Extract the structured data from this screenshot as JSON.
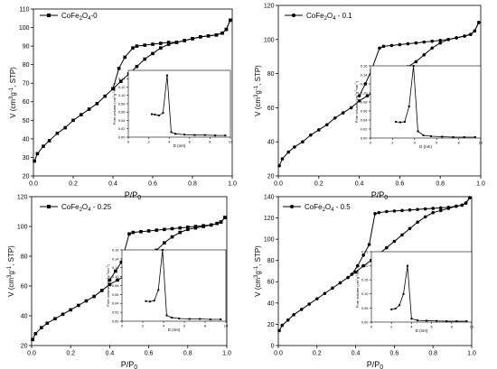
{
  "chart_data": [
    {
      "type": "line",
      "legend": "CoFe2O4-0",
      "legend_formula": {
        "base": "CoFe",
        "s1": "2",
        "mid": "O",
        "s2": "4",
        "tail": "-0"
      },
      "legend_position": "top-left",
      "marker": "square",
      "xlabel": "P/P0",
      "ylabel": "V (cm3g-1, STP)",
      "xlim": [
        0,
        1.0
      ],
      "ylim": [
        20,
        110
      ],
      "xticks": [
        "0.0",
        "0.2",
        "0.4",
        "0.6",
        "0.8",
        "1.0"
      ],
      "yticks": [
        "20",
        "30",
        "40",
        "50",
        "60",
        "70",
        "80",
        "90",
        "100",
        "110"
      ],
      "grid": false,
      "adsorption": {
        "x": [
          0.005,
          0.02,
          0.05,
          0.08,
          0.12,
          0.16,
          0.2,
          0.24,
          0.28,
          0.32,
          0.36,
          0.4,
          0.44,
          0.48,
          0.52,
          0.56,
          0.6,
          0.64,
          0.68,
          0.72,
          0.76,
          0.8,
          0.84,
          0.88,
          0.92,
          0.95,
          0.97,
          0.99
        ],
        "y": [
          28,
          32,
          36,
          39,
          43,
          46,
          50,
          53,
          56,
          59,
          63,
          67,
          71,
          75,
          79,
          83,
          86,
          89,
          91,
          92,
          93,
          94,
          95,
          95.5,
          96,
          97,
          99,
          104
        ]
      },
      "desorption": {
        "x": [
          0.99,
          0.97,
          0.95,
          0.92,
          0.88,
          0.84,
          0.8,
          0.76,
          0.72,
          0.68,
          0.64,
          0.6,
          0.56,
          0.52,
          0.5,
          0.46,
          0.43,
          0.4
        ],
        "y": [
          104,
          99,
          97,
          96,
          95.5,
          95,
          94,
          93,
          92,
          92,
          91.5,
          91,
          90.5,
          90,
          89,
          84,
          78,
          67
        ]
      },
      "inset": {
        "xlabel": "D (nm)",
        "ylabel": "Pore volume (cm3g-1nm-1)",
        "xlim": [
          0,
          10
        ],
        "ylim": [
          0,
          0.16
        ],
        "xticks": [
          "0",
          "2",
          "4",
          "6",
          "8",
          "10"
        ],
        "yticks": [
          "0.00",
          "0.02",
          "0.04",
          "0.06",
          "0.08",
          "0.10",
          "0.12",
          "0.14"
        ],
        "x": [
          2.3,
          2.6,
          3.0,
          3.4,
          3.8,
          4.2,
          4.6,
          5.5,
          6.5,
          7.5,
          8.5,
          9.5
        ],
        "y": [
          0.055,
          0.054,
          0.052,
          0.058,
          0.148,
          0.012,
          0.008,
          0.006,
          0.005,
          0.005,
          0.004,
          0.004
        ]
      }
    },
    {
      "type": "line",
      "legend": "CoFe2O4 - 0.1",
      "legend_formula": {
        "base": "CoFe",
        "s1": "2",
        "mid": "O",
        "s2": "4",
        "tail": " - 0.1"
      },
      "legend_position": "top-left",
      "marker": "circle",
      "xlabel": "P/P0",
      "ylabel": "V (cm3g-1, STP)",
      "xlim": [
        0,
        1.0
      ],
      "ylim": [
        20,
        120
      ],
      "xticks": [
        "0.0",
        "0.2",
        "0.4",
        "0.6",
        "0.8",
        "1.0"
      ],
      "yticks": [
        "20",
        "40",
        "60",
        "80",
        "100",
        "120"
      ],
      "grid": false,
      "adsorption": {
        "x": [
          0.005,
          0.02,
          0.05,
          0.08,
          0.12,
          0.16,
          0.2,
          0.24,
          0.28,
          0.32,
          0.36,
          0.4,
          0.44,
          0.48,
          0.52,
          0.56,
          0.6,
          0.64,
          0.68,
          0.72,
          0.76,
          0.8,
          0.84,
          0.88,
          0.92,
          0.95,
          0.97,
          0.99
        ],
        "y": [
          26,
          30,
          34,
          37,
          40,
          44,
          47,
          50,
          54,
          57,
          60,
          64,
          67,
          70,
          73,
          76,
          80,
          84,
          87,
          91,
          95,
          98,
          100,
          101,
          102,
          103,
          105,
          110
        ]
      },
      "desorption": {
        "x": [
          0.99,
          0.97,
          0.95,
          0.92,
          0.88,
          0.84,
          0.8,
          0.76,
          0.72,
          0.68,
          0.64,
          0.6,
          0.56,
          0.52,
          0.5,
          0.46,
          0.43,
          0.4
        ],
        "y": [
          110,
          105,
          103,
          102,
          101,
          100,
          99.5,
          99,
          98.5,
          98,
          97.5,
          97,
          96.5,
          96,
          95,
          82,
          74,
          67
        ]
      },
      "inset": {
        "xlabel": "D (nm)",
        "ylabel": "Pore volume (cm3g-1nm-1)",
        "xlim": [
          0,
          10
        ],
        "ylim": [
          0,
          0.16
        ],
        "xticks": [
          "0",
          "2",
          "4",
          "6",
          "8",
          "10"
        ],
        "yticks": [
          "0.00",
          "0.02",
          "0.04",
          "0.06",
          "0.08",
          "0.10",
          "0.12",
          "0.14",
          "0.16"
        ],
        "x": [
          2.3,
          2.7,
          3.1,
          3.5,
          3.9,
          4.3,
          4.8,
          5.5,
          6.5,
          7.5,
          8.5,
          9.5
        ],
        "y": [
          0.036,
          0.035,
          0.036,
          0.07,
          0.16,
          0.015,
          0.006,
          0.004,
          0.003,
          0.002,
          0.002,
          0.002
        ]
      }
    },
    {
      "type": "line",
      "legend": "CoFe2O4 - 0.25",
      "legend_formula": {
        "base": "CoFe",
        "s1": "2",
        "mid": "O",
        "s2": "4",
        "tail": " - 0.25"
      },
      "legend_position": "top-left",
      "marker": "square",
      "xlabel": "P/P0",
      "ylabel": "V (cm3g-1, STP)",
      "xlim": [
        0,
        1.0
      ],
      "ylim": [
        20,
        120
      ],
      "xticks": [
        "0.0",
        "0.2",
        "0.4",
        "0.6",
        "0.8",
        "1.0"
      ],
      "yticks": [
        "20",
        "40",
        "60",
        "80",
        "100",
        "120"
      ],
      "grid": false,
      "adsorption": {
        "x": [
          0.005,
          0.02,
          0.05,
          0.08,
          0.12,
          0.16,
          0.2,
          0.24,
          0.28,
          0.32,
          0.36,
          0.4,
          0.44,
          0.48,
          0.52,
          0.56,
          0.6,
          0.64,
          0.68,
          0.72,
          0.76,
          0.8,
          0.84,
          0.88,
          0.92,
          0.95,
          0.97,
          0.99
        ],
        "y": [
          24,
          28,
          32,
          35,
          38,
          41,
          44,
          47,
          50,
          53,
          57,
          61,
          64,
          67,
          71,
          75,
          79,
          84,
          89,
          93,
          96,
          98,
          99,
          100,
          101,
          102,
          103,
          106
        ]
      },
      "desorption": {
        "x": [
          0.99,
          0.97,
          0.95,
          0.92,
          0.88,
          0.84,
          0.8,
          0.76,
          0.72,
          0.68,
          0.64,
          0.6,
          0.56,
          0.52,
          0.5,
          0.46,
          0.43,
          0.4
        ],
        "y": [
          106,
          103,
          102,
          101,
          100.5,
          100,
          99.5,
          99,
          98.5,
          98,
          97.5,
          97,
          96.5,
          96,
          95,
          76,
          70,
          64
        ]
      },
      "inset": {
        "xlabel": "D (nm)",
        "ylabel": "Pore volume (cm3g-1nm-1)",
        "xlim": [
          0,
          10
        ],
        "ylim": [
          0,
          0.16
        ],
        "xticks": [
          "0",
          "2",
          "4",
          "6",
          "8",
          "10"
        ],
        "yticks": [
          "0.00",
          "0.02",
          "0.04",
          "0.06",
          "0.08",
          "0.10",
          "0.12",
          "0.14",
          "0.16"
        ],
        "x": [
          2.3,
          2.7,
          3.1,
          3.5,
          3.9,
          4.3,
          4.8,
          5.5,
          6.5,
          7.5,
          8.5,
          9.5
        ],
        "y": [
          0.045,
          0.044,
          0.046,
          0.07,
          0.16,
          0.013,
          0.008,
          0.006,
          0.005,
          0.005,
          0.004,
          0.004
        ]
      }
    },
    {
      "type": "line",
      "legend": "CoFe2O4 - 0.5",
      "legend_formula": {
        "base": "CoFe",
        "s1": "2",
        "mid": "O",
        "s2": "4",
        "tail": " - 0.5"
      },
      "legend_position": "top-left",
      "marker": "circle",
      "xlabel": "P/P0",
      "ylabel": "V (cm3g-1, STP)",
      "xlim": [
        0,
        1.0
      ],
      "ylim": [
        0,
        140
      ],
      "xticks": [
        "0.0",
        "0.2",
        "0.4",
        "0.6",
        "0.8",
        "1.0"
      ],
      "yticks": [
        "0",
        "20",
        "40",
        "60",
        "80",
        "100",
        "120",
        "140"
      ],
      "grid": false,
      "adsorption": {
        "x": [
          0.005,
          0.02,
          0.05,
          0.08,
          0.12,
          0.16,
          0.2,
          0.24,
          0.28,
          0.32,
          0.36,
          0.4,
          0.44,
          0.48,
          0.52,
          0.56,
          0.6,
          0.64,
          0.68,
          0.72,
          0.76,
          0.8,
          0.84,
          0.88,
          0.92,
          0.95,
          0.97,
          0.99
        ],
        "y": [
          14,
          19,
          24,
          29,
          34,
          39,
          44,
          49,
          54,
          59,
          64,
          69,
          75,
          80,
          86,
          92,
          98,
          104,
          110,
          116,
          121,
          125,
          127,
          129,
          131,
          132,
          134,
          139
        ]
      },
      "desorption": {
        "x": [
          0.99,
          0.97,
          0.95,
          0.92,
          0.88,
          0.84,
          0.8,
          0.76,
          0.72,
          0.68,
          0.64,
          0.6,
          0.56,
          0.52,
          0.5,
          0.47,
          0.44,
          0.41,
          0.38
        ],
        "y": [
          139,
          134,
          132,
          131,
          130,
          129.5,
          129,
          128.5,
          128,
          127.5,
          127,
          126.5,
          126,
          125,
          124,
          95,
          85,
          75,
          67
        ]
      },
      "inset": {
        "xlabel": "D (nm)",
        "ylabel": "Pore volume (cm3g-1nm-1)",
        "xlim": [
          0,
          10
        ],
        "ylim": [
          0,
          0.25
        ],
        "xticks": [
          "0",
          "2",
          "4",
          "6",
          "8",
          "10"
        ],
        "yticks": [
          "0.00",
          "0.05",
          "0.10",
          "0.15",
          "0.20",
          "0.25"
        ],
        "x": [
          2.0,
          2.4,
          2.8,
          3.2,
          3.6,
          4.0,
          4.6,
          5.5,
          6.5,
          7.5,
          8.5,
          9.5
        ],
        "y": [
          0.045,
          0.048,
          0.06,
          0.1,
          0.2,
          0.012,
          0.006,
          0.005,
          0.004,
          0.003,
          0.003,
          0.003
        ]
      }
    }
  ]
}
